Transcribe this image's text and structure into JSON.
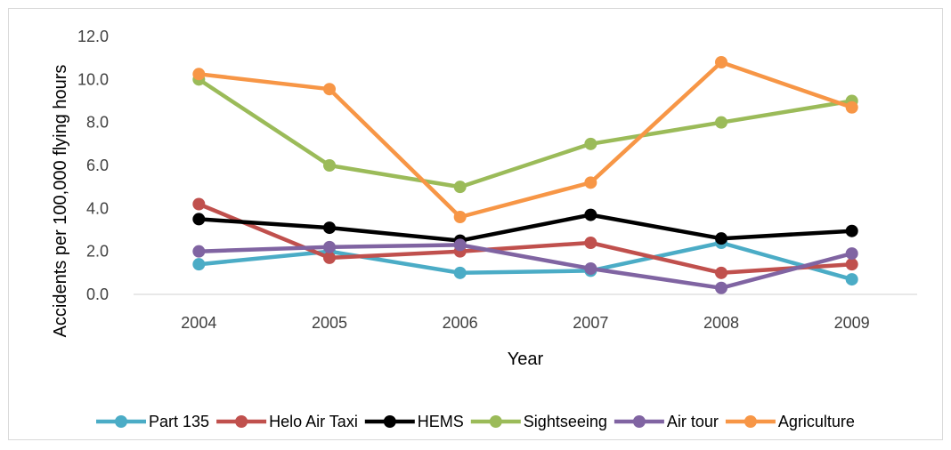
{
  "chart_data": {
    "type": "line",
    "title": "",
    "xlabel": "Year",
    "ylabel": "Accidents per 100,000 flying hours",
    "categories": [
      "2004",
      "2005",
      "2006",
      "2007",
      "2008",
      "2009"
    ],
    "ylim": [
      0,
      12
    ],
    "yticks": [
      "0.0",
      "2.0",
      "4.0",
      "6.0",
      "8.0",
      "10.0",
      "12.0"
    ],
    "grid": false,
    "legend_position": "bottom",
    "series": [
      {
        "name": "Part 135",
        "color": "#4BACC6",
        "values": [
          1.4,
          2.0,
          1.0,
          1.1,
          2.4,
          0.7
        ]
      },
      {
        "name": "Helo Air Taxi",
        "color": "#C0504D",
        "values": [
          4.2,
          1.7,
          2.0,
          2.4,
          1.0,
          1.4
        ]
      },
      {
        "name": "HEMS",
        "color": "#000000",
        "values": [
          3.5,
          3.1,
          2.5,
          3.7,
          2.6,
          2.95
        ]
      },
      {
        "name": "Sightseeing",
        "color": "#9BBB59",
        "values": [
          10.0,
          6.0,
          5.0,
          7.0,
          8.0,
          9.0
        ]
      },
      {
        "name": "Air tour",
        "color": "#8064A2",
        "values": [
          2.0,
          2.2,
          2.3,
          1.2,
          0.3,
          1.9
        ]
      },
      {
        "name": "Agriculture",
        "color": "#F79646",
        "values": [
          10.25,
          9.55,
          3.6,
          5.2,
          10.8,
          8.7
        ]
      }
    ]
  }
}
